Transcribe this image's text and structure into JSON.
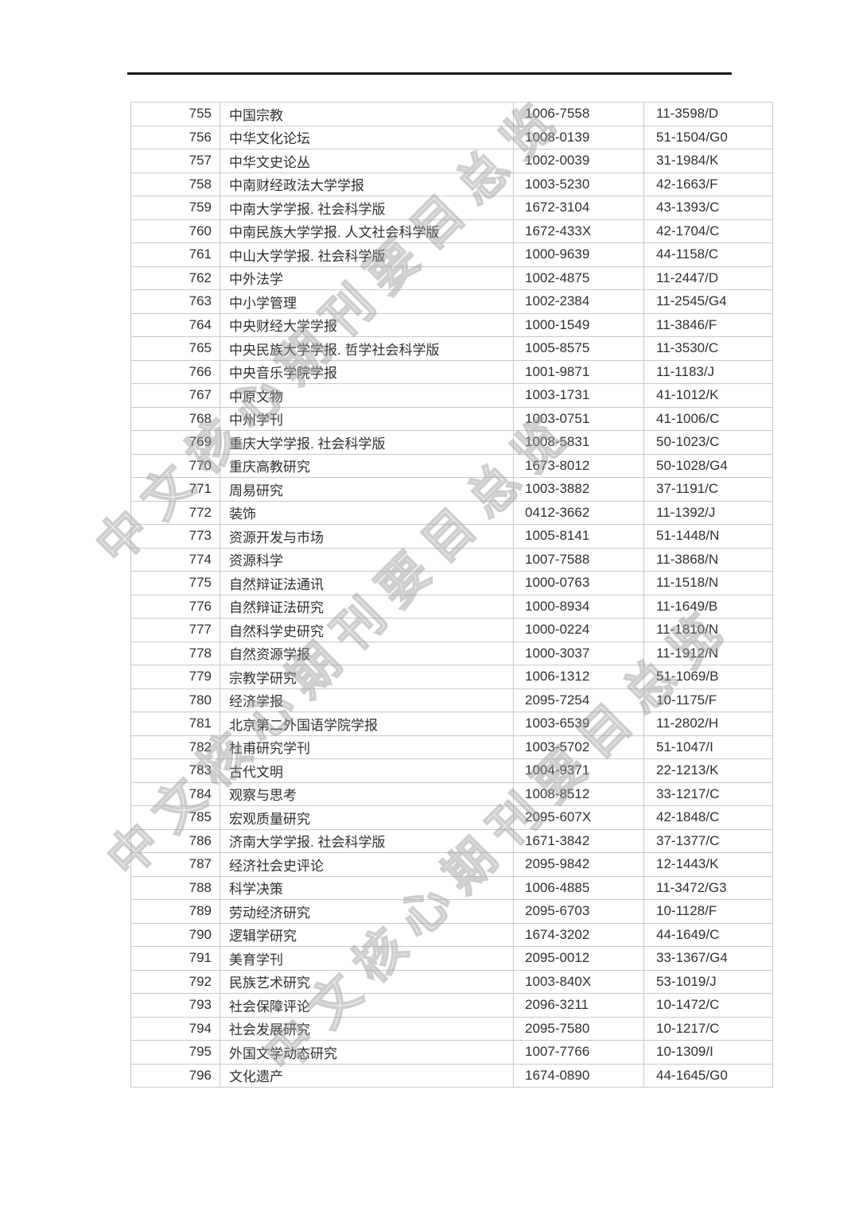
{
  "watermark": {
    "text": "中文核心期刊要目总览"
  },
  "table": {
    "rows": [
      {
        "no": "755",
        "title": "中国宗教",
        "issn": "1006-7558",
        "cn": "11-3598/D"
      },
      {
        "no": "756",
        "title": "中华文化论坛",
        "issn": "1008-0139",
        "cn": "51-1504/G0"
      },
      {
        "no": "757",
        "title": "中华文史论丛",
        "issn": "1002-0039",
        "cn": "31-1984/K"
      },
      {
        "no": "758",
        "title": "中南财经政法大学学报",
        "issn": "1003-5230",
        "cn": "42-1663/F"
      },
      {
        "no": "759",
        "title": "中南大学学报. 社会科学版",
        "issn": "1672-3104",
        "cn": "43-1393/C"
      },
      {
        "no": "760",
        "title": "中南民族大学学报. 人文社会科学版",
        "issn": "1672-433X",
        "cn": "42-1704/C"
      },
      {
        "no": "761",
        "title": "中山大学学报. 社会科学版",
        "issn": "1000-9639",
        "cn": "44-1158/C"
      },
      {
        "no": "762",
        "title": "中外法学",
        "issn": "1002-4875",
        "cn": "11-2447/D"
      },
      {
        "no": "763",
        "title": "中小学管理",
        "issn": "1002-2384",
        "cn": "11-2545/G4"
      },
      {
        "no": "764",
        "title": "中央财经大学学报",
        "issn": "1000-1549",
        "cn": "11-3846/F"
      },
      {
        "no": "765",
        "title": "中央民族大学学报. 哲学社会科学版",
        "issn": "1005-8575",
        "cn": "11-3530/C"
      },
      {
        "no": "766",
        "title": "中央音乐学院学报",
        "issn": "1001-9871",
        "cn": "11-1183/J"
      },
      {
        "no": "767",
        "title": "中原文物",
        "issn": "1003-1731",
        "cn": "41-1012/K"
      },
      {
        "no": "768",
        "title": "中州学刊",
        "issn": "1003-0751",
        "cn": "41-1006/C"
      },
      {
        "no": "769",
        "title": "重庆大学学报. 社会科学版",
        "issn": "1008-5831",
        "cn": "50-1023/C"
      },
      {
        "no": "770",
        "title": "重庆高教研究",
        "issn": "1673-8012",
        "cn": "50-1028/G4"
      },
      {
        "no": "771",
        "title": "周易研究",
        "issn": "1003-3882",
        "cn": "37-1191/C"
      },
      {
        "no": "772",
        "title": "装饰",
        "issn": "0412-3662",
        "cn": "11-1392/J"
      },
      {
        "no": "773",
        "title": "资源开发与市场",
        "issn": "1005-8141",
        "cn": "51-1448/N"
      },
      {
        "no": "774",
        "title": "资源科学",
        "issn": "1007-7588",
        "cn": "11-3868/N"
      },
      {
        "no": "775",
        "title": "自然辩证法通讯",
        "issn": "1000-0763",
        "cn": "11-1518/N"
      },
      {
        "no": "776",
        "title": "自然辩证法研究",
        "issn": "1000-8934",
        "cn": "11-1649/B"
      },
      {
        "no": "777",
        "title": "自然科学史研究",
        "issn": "1000-0224",
        "cn": "11-1810/N"
      },
      {
        "no": "778",
        "title": "自然资源学报",
        "issn": "1000-3037",
        "cn": "11-1912/N"
      },
      {
        "no": "779",
        "title": "宗教学研究",
        "issn": "1006-1312",
        "cn": "51-1069/B"
      },
      {
        "no": "780",
        "title": "经济学报",
        "issn": "2095-7254",
        "cn": "10-1175/F"
      },
      {
        "no": "781",
        "title": "北京第二外国语学院学报",
        "issn": "1003-6539",
        "cn": "11-2802/H"
      },
      {
        "no": "782",
        "title": "杜甫研究学刊",
        "issn": "1003-5702",
        "cn": "51-1047/I"
      },
      {
        "no": "783",
        "title": "古代文明",
        "issn": "1004-9371",
        "cn": "22-1213/K"
      },
      {
        "no": "784",
        "title": "观察与思考",
        "issn": "1008-8512",
        "cn": "33-1217/C"
      },
      {
        "no": "785",
        "title": "宏观质量研究",
        "issn": "2095-607X",
        "cn": "42-1848/C"
      },
      {
        "no": "786",
        "title": "济南大学学报. 社会科学版",
        "issn": "1671-3842",
        "cn": "37-1377/C"
      },
      {
        "no": "787",
        "title": "经济社会史评论",
        "issn": "2095-9842",
        "cn": "12-1443/K"
      },
      {
        "no": "788",
        "title": "科学决策",
        "issn": "1006-4885",
        "cn": "11-3472/G3"
      },
      {
        "no": "789",
        "title": "劳动经济研究",
        "issn": "2095-6703",
        "cn": "10-1128/F"
      },
      {
        "no": "790",
        "title": "逻辑学研究",
        "issn": "1674-3202",
        "cn": "44-1649/C"
      },
      {
        "no": "791",
        "title": "美育学刊",
        "issn": "2095-0012",
        "cn": "33-1367/G4"
      },
      {
        "no": "792",
        "title": "民族艺术研究",
        "issn": "1003-840X",
        "cn": "53-1019/J"
      },
      {
        "no": "793",
        "title": "社会保障评论",
        "issn": "2096-3211",
        "cn": "10-1472/C"
      },
      {
        "no": "794",
        "title": "社会发展研究",
        "issn": "2095-7580",
        "cn": "10-1217/C"
      },
      {
        "no": "795",
        "title": "外国文学动态研究",
        "issn": "1007-7766",
        "cn": "10-1309/I"
      },
      {
        "no": "796",
        "title": "文化遗产",
        "issn": "1674-0890",
        "cn": "44-1645/G0"
      }
    ]
  }
}
